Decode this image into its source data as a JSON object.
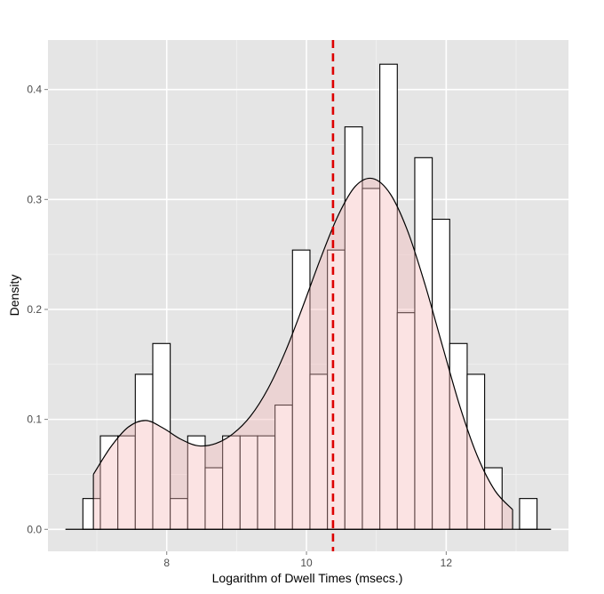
{
  "chart_data": {
    "type": "bar",
    "xlabel": "Logarithm of Dwell Times (msecs.)",
    "ylabel": "Density",
    "xlim": [
      6.3,
      13.75
    ],
    "ylim": [
      -0.02,
      0.445
    ],
    "x_ticks": [
      8,
      10,
      12
    ],
    "x_tick_labels": [
      "8",
      "10",
      "12"
    ],
    "y_ticks": [
      0.0,
      0.1,
      0.2,
      0.3,
      0.4
    ],
    "y_tick_labels": [
      "0.0",
      "0.1",
      "0.2",
      "0.3",
      "0.4"
    ],
    "grid": true,
    "colors": {
      "panel_background": "#e5e5e5",
      "grid_major": "#ffffff",
      "grid_minor": "#f2f2f2",
      "histogram_fill": "#ffffff",
      "histogram_outline": "#000000",
      "density_fill": "#f4b6b6",
      "density_outline": "#000000",
      "reference_line": "#dd0000"
    },
    "histogram": {
      "bin_start": 6.8,
      "bin_width": 0.25,
      "densities": [
        0.028,
        0.085,
        0.085,
        0.141,
        0.169,
        0.028,
        0.085,
        0.056,
        0.085,
        0.085,
        0.085,
        0.113,
        0.254,
        0.141,
        0.254,
        0.366,
        0.31,
        0.423,
        0.197,
        0.338,
        0.282,
        0.169,
        0.141,
        0.056,
        0.0,
        0.028
      ]
    },
    "density_curve": {
      "x": [
        6.95,
        7.2,
        7.45,
        7.7,
        7.95,
        8.2,
        8.45,
        8.7,
        8.95,
        9.2,
        9.45,
        9.7,
        9.95,
        10.2,
        10.45,
        10.7,
        10.95,
        11.2,
        11.45,
        11.7,
        11.95,
        12.2,
        12.45,
        12.7,
        12.95
      ],
      "y": [
        0.05,
        0.075,
        0.093,
        0.099,
        0.092,
        0.082,
        0.076,
        0.078,
        0.087,
        0.103,
        0.128,
        0.162,
        0.203,
        0.246,
        0.285,
        0.312,
        0.319,
        0.305,
        0.271,
        0.222,
        0.166,
        0.111,
        0.066,
        0.035,
        0.018
      ]
    },
    "reference_line": {
      "x": 10.38,
      "style": "dashed"
    }
  }
}
